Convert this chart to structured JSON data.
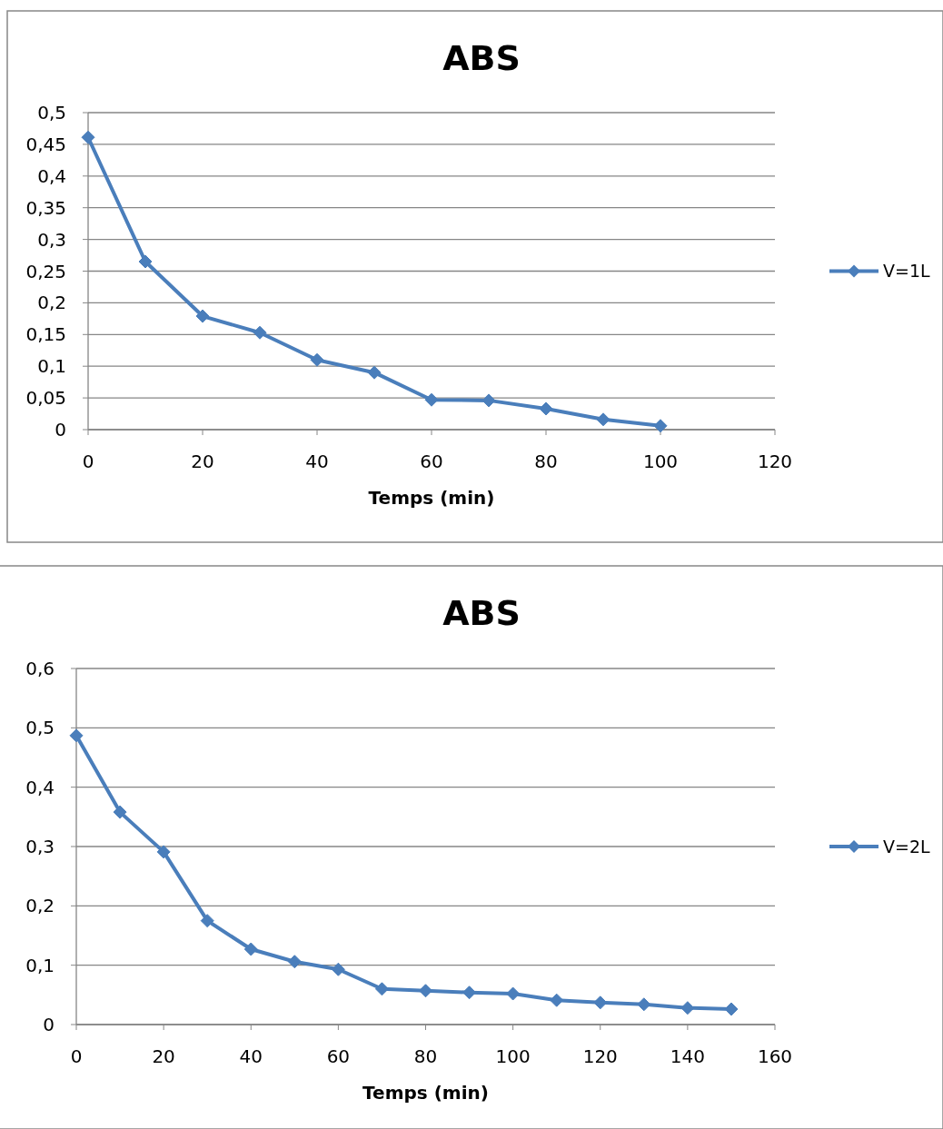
{
  "chart_data": [
    {
      "type": "line",
      "title": "ABS",
      "xlabel": "Temps (min)",
      "series": [
        {
          "name": "V=1L",
          "color": "#4a7ebb",
          "x": [
            0,
            10,
            20,
            30,
            40,
            50,
            60,
            70,
            80,
            90,
            100
          ],
          "values": [
            0.461,
            0.265,
            0.179,
            0.153,
            0.11,
            0.09,
            0.047,
            0.046,
            0.033,
            0.016,
            0.006
          ]
        }
      ],
      "xlim": [
        0,
        120
      ],
      "xticks": [
        0,
        20,
        40,
        60,
        80,
        100,
        120
      ],
      "ylim": [
        0,
        0.5
      ],
      "yticks": [
        0,
        {
          "value": 0.05,
          "label": "0,05"
        },
        {
          "value": 0.1,
          "label": "0,1"
        },
        {
          "value": 0.15,
          "label": "0,15"
        },
        {
          "value": 0.2,
          "label": "0,2"
        },
        {
          "value": 0.25,
          "label": "0,25"
        },
        {
          "value": 0.3,
          "label": "0,3"
        },
        {
          "value": 0.35,
          "label": "0,35"
        },
        {
          "value": 0.4,
          "label": "0,4"
        },
        {
          "value": 0.45,
          "label": "0,45"
        },
        {
          "value": 0.5,
          "label": "0,5"
        }
      ],
      "grid": "y",
      "legend": "right",
      "marker": "diamond",
      "line_style": "solid"
    },
    {
      "type": "line",
      "title": "ABS",
      "xlabel": "Temps (min)",
      "series": [
        {
          "name": "V=2L",
          "color": "#4a7ebb",
          "x": [
            0,
            10,
            20,
            30,
            40,
            50,
            60,
            70,
            80,
            90,
            100,
            110,
            120,
            130,
            140,
            150
          ],
          "values": [
            0.487,
            0.358,
            0.291,
            0.175,
            0.127,
            0.106,
            0.093,
            0.06,
            0.057,
            0.054,
            0.052,
            0.041,
            0.037,
            0.034,
            0.028,
            0.026
          ]
        }
      ],
      "xlim": [
        0,
        160
      ],
      "xticks": [
        0,
        20,
        40,
        60,
        80,
        100,
        120,
        140,
        160
      ],
      "ylim": [
        0,
        0.6
      ],
      "yticks": [
        0,
        {
          "value": 0.1,
          "label": "0,1"
        },
        {
          "value": 0.2,
          "label": "0,2"
        },
        {
          "value": 0.3,
          "label": "0,3"
        },
        {
          "value": 0.4,
          "label": "0,4"
        },
        {
          "value": 0.5,
          "label": "0,5"
        },
        {
          "value": 0.6,
          "label": "0,6"
        }
      ],
      "grid": "y",
      "legend": "right",
      "marker": "diamond",
      "line_style": "solid"
    }
  ]
}
